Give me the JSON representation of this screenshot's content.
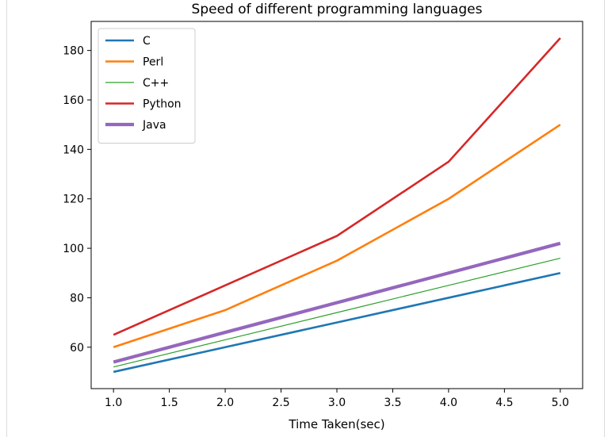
{
  "chart_data": {
    "type": "line",
    "title": "Speed of different programming languages",
    "xlabel": "Time Taken(sec)",
    "ylabel": "",
    "x": [
      1.0,
      2.0,
      3.0,
      4.0,
      5.0
    ],
    "xlim": [
      0.8,
      5.2
    ],
    "ylim": [
      43.25,
      191.75
    ],
    "xticks": [
      "1.0",
      "1.5",
      "2.0",
      "2.5",
      "3.0",
      "3.5",
      "4.0",
      "4.5",
      "5.0"
    ],
    "yticks": [
      "60",
      "80",
      "100",
      "120",
      "140",
      "160",
      "180"
    ],
    "grid": false,
    "legend_position": "top-left",
    "series": [
      {
        "name": "C",
        "values": [
          50,
          60,
          70,
          80,
          90
        ],
        "color": "#1f77b4",
        "linewidth": "medium"
      },
      {
        "name": "Perl",
        "values": [
          60,
          75,
          95,
          120,
          150
        ],
        "color": "#ff7f0e",
        "linewidth": "medium"
      },
      {
        "name": "C++",
        "values": [
          52,
          63,
          74,
          85,
          96
        ],
        "color": "#2ca02c",
        "linewidth": "thin"
      },
      {
        "name": "Python",
        "values": [
          65,
          85,
          105,
          135,
          185
        ],
        "color": "#d62728",
        "linewidth": "medium"
      },
      {
        "name": "Java",
        "values": [
          54,
          66,
          78,
          90,
          102
        ],
        "color": "#9467bd",
        "linewidth": "thick"
      }
    ]
  }
}
